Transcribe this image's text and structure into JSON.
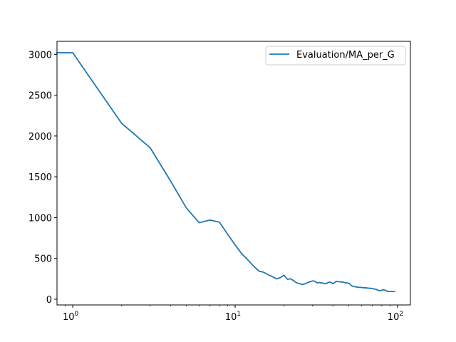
{
  "chart_data": {
    "type": "line",
    "xscale": "log",
    "xlim": [
      0.8,
      120
    ],
    "ylim": [
      -70,
      3160
    ],
    "grid": false,
    "legend_placement": "top-right",
    "x_ticks": [
      {
        "value": 1,
        "base": "10",
        "exp": "0"
      },
      {
        "value": 10,
        "base": "10",
        "exp": "1"
      },
      {
        "value": 100,
        "base": "10",
        "exp": "2"
      }
    ],
    "y_ticks": [
      {
        "value": 0,
        "label": "0"
      },
      {
        "value": 500,
        "label": "500"
      },
      {
        "value": 1000,
        "label": "1000"
      },
      {
        "value": 1500,
        "label": "1500"
      },
      {
        "value": 2000,
        "label": "2000"
      },
      {
        "value": 2500,
        "label": "2500"
      },
      {
        "value": 3000,
        "label": "3000"
      }
    ],
    "series": [
      {
        "name": "Evaluation/MA_per_G",
        "color": "#1f77b4",
        "x": [
          0.8,
          1,
          2,
          3,
          4,
          5,
          6,
          7,
          8,
          9,
          10,
          11,
          12,
          13,
          14,
          15,
          16,
          17,
          18,
          19,
          20,
          21,
          22,
          23,
          24,
          25,
          26,
          27,
          28,
          29,
          30,
          31,
          32,
          33,
          34,
          35,
          36,
          37,
          38,
          39,
          40,
          41,
          42,
          43,
          44,
          45,
          46,
          47,
          48,
          49,
          50,
          51,
          52,
          54,
          56,
          58,
          60,
          62,
          64,
          66,
          68,
          70,
          72,
          74,
          76,
          78,
          80,
          82,
          84,
          86,
          88,
          90,
          92,
          94,
          96
        ],
        "y": [
          3020,
          3020,
          2155,
          1855,
          1450,
          1120,
          938,
          970,
          945,
          795,
          665,
          555,
          480,
          405,
          345,
          330,
          300,
          275,
          250,
          265,
          295,
          245,
          250,
          225,
          200,
          190,
          180,
          190,
          205,
          215,
          225,
          220,
          200,
          205,
          200,
          195,
          190,
          200,
          210,
          205,
          190,
          205,
          220,
          215,
          215,
          210,
          210,
          205,
          200,
          200,
          195,
          185,
          165,
          155,
          150,
          145,
          145,
          140,
          140,
          135,
          135,
          130,
          125,
          120,
          110,
          105,
          110,
          115,
          110,
          100,
          95,
          95,
          95,
          95,
          95
        ]
      }
    ]
  }
}
